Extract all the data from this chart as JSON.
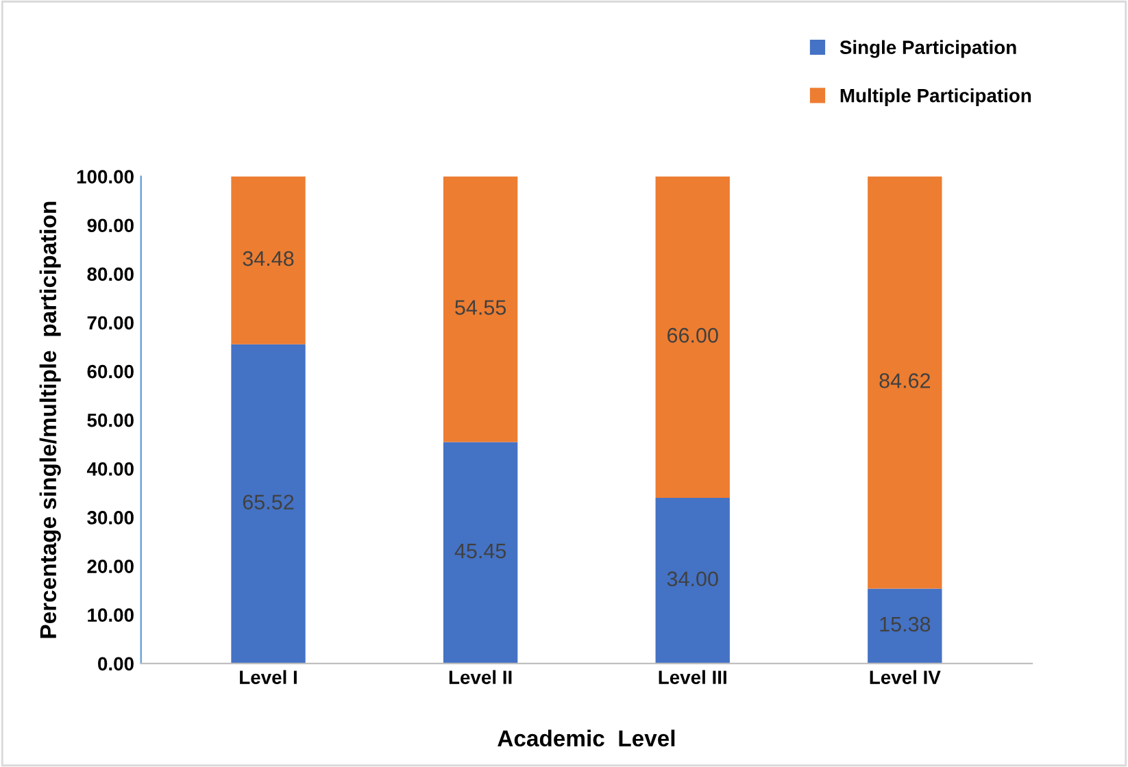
{
  "chart_data": {
    "type": "bar",
    "stacked": true,
    "xlabel": "Academic  Level",
    "ylabel": "Percentage single/multiple  participation",
    "categories": [
      "Level I",
      "Level II",
      "Level III",
      "Level IV"
    ],
    "series": [
      {
        "name": "Single Participation",
        "color": "#4472c4",
        "values": [
          65.52,
          45.45,
          34.0,
          15.38
        ],
        "value_labels": [
          "65.52",
          "45.45",
          "34.00",
          "15.38"
        ]
      },
      {
        "name": "Multiple Participation",
        "color": "#ed7d31",
        "values": [
          34.48,
          54.55,
          66.0,
          84.62
        ],
        "value_labels": [
          "34.48",
          "54.55",
          "66.00",
          "84.62"
        ]
      }
    ],
    "ylim": [
      0,
      100
    ],
    "yticks": [
      {
        "value": 0,
        "label": "0.00"
      },
      {
        "value": 10,
        "label": "10.00"
      },
      {
        "value": 20,
        "label": "20.00"
      },
      {
        "value": 30,
        "label": "30.00"
      },
      {
        "value": 40,
        "label": "40.00"
      },
      {
        "value": 50,
        "label": "50.00"
      },
      {
        "value": 60,
        "label": "60.00"
      },
      {
        "value": 70,
        "label": "70.00"
      },
      {
        "value": 80,
        "label": "80.00"
      },
      {
        "value": 90,
        "label": "90.00"
      },
      {
        "value": 100,
        "label": "100.00"
      }
    ],
    "grid": false,
    "legend": "top right"
  }
}
